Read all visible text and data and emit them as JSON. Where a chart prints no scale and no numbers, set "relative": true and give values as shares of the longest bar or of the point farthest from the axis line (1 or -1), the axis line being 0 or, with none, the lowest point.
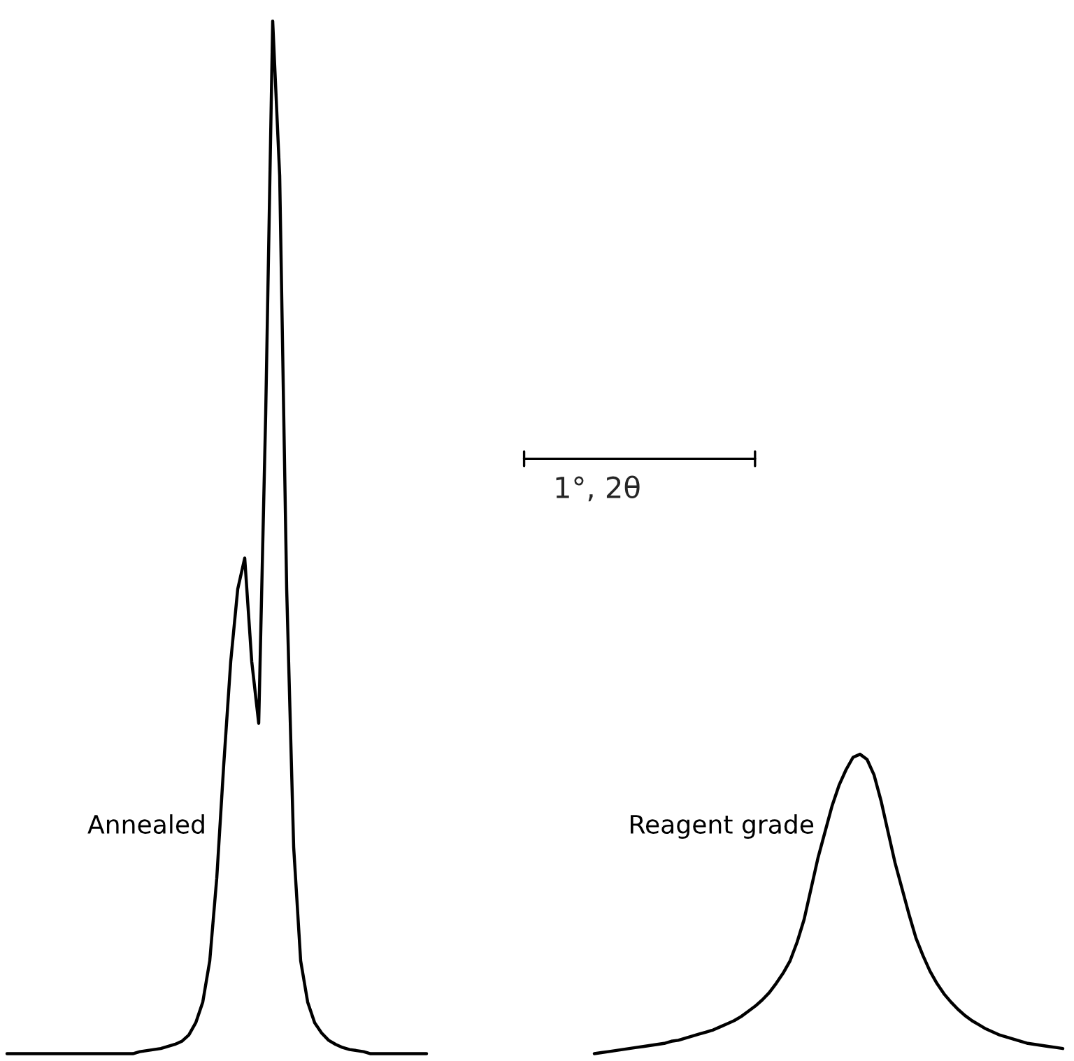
{
  "chart_data": {
    "type": "line",
    "relative": true,
    "line_style": "solid",
    "categories": [
      null,
      null,
      null,
      null,
      null,
      null,
      null,
      null,
      null,
      null,
      null,
      null,
      null,
      null,
      null,
      null,
      null,
      null,
      null,
      null,
      null,
      null,
      null,
      null,
      null,
      null,
      null,
      null,
      null,
      null,
      null,
      null,
      null,
      null,
      null,
      null,
      null,
      null,
      null,
      null,
      null,
      null,
      null,
      null,
      null,
      null,
      null,
      null,
      null,
      null,
      null,
      null,
      null,
      null,
      null,
      null,
      null,
      null,
      null,
      null,
      null,
      null,
      null,
      null,
      null,
      null,
      null,
      null,
      null,
      null,
      null,
      null,
      null,
      null,
      null,
      null,
      null,
      null,
      null,
      null,
      null,
      null,
      null,
      null,
      null,
      null,
      null,
      null,
      null,
      null,
      null,
      null,
      null,
      null,
      null,
      null,
      null,
      null,
      null,
      null,
      null,
      null,
      null,
      null,
      null,
      null,
      null,
      null,
      null,
      null,
      null,
      null,
      null,
      null,
      null,
      null,
      null,
      null,
      null,
      null,
      null,
      null,
      null,
      null,
      null,
      null,
      null,
      null,
      null,
      null,
      null,
      null,
      null,
      null,
      null,
      null,
      null,
      null,
      null,
      null,
      null,
      null,
      null,
      null,
      null,
      null,
      null,
      null,
      null,
      null,
      null,
      null,
      null
    ],
    "series": [
      {
        "name": "Annealed",
        "color": "#000000",
        "values": [
          null,
          0,
          0,
          0,
          0,
          0,
          0,
          0,
          0,
          0,
          0,
          0,
          0,
          0,
          0,
          0,
          0,
          0,
          0,
          0,
          0.002,
          0.003,
          0.004,
          0.005,
          0.007,
          0.009,
          0.012,
          0.018,
          0.03,
          0.05,
          0.09,
          0.17,
          0.28,
          0.38,
          0.45,
          0.48,
          0.38,
          0.32,
          0.62,
          1.0,
          0.85,
          0.45,
          0.2,
          0.09,
          0.05,
          0.03,
          0.02,
          0.013,
          0.009,
          0.006,
          0.004,
          0.003,
          0.002,
          0,
          0,
          0,
          0,
          0,
          0,
          0,
          0,
          0,
          null,
          null,
          null,
          null,
          null,
          null,
          null,
          null,
          null,
          null,
          null,
          null,
          null,
          null,
          null,
          null,
          null,
          null,
          null,
          null,
          null,
          null,
          null,
          null,
          null,
          null,
          null,
          null,
          null,
          null,
          null,
          null,
          null,
          null,
          null,
          null,
          null,
          null,
          null,
          null,
          null,
          null,
          null,
          null,
          null,
          null,
          null,
          null,
          null,
          null,
          null,
          null,
          null,
          null,
          null,
          null,
          null,
          null,
          null,
          null,
          null,
          null,
          null,
          null,
          null,
          null,
          null,
          null,
          null,
          null,
          null,
          null,
          null,
          null,
          null,
          null,
          null,
          null,
          null,
          null,
          null,
          null,
          null,
          null,
          null,
          null,
          null,
          null,
          null,
          null,
          null
        ]
      },
      {
        "name": "Reagent grade",
        "color": "#000000",
        "values": [
          null,
          null,
          null,
          null,
          null,
          null,
          null,
          null,
          null,
          null,
          null,
          null,
          null,
          null,
          null,
          null,
          null,
          null,
          null,
          null,
          null,
          null,
          null,
          null,
          null,
          null,
          null,
          null,
          null,
          null,
          null,
          null,
          null,
          null,
          null,
          null,
          null,
          null,
          null,
          null,
          null,
          null,
          null,
          null,
          null,
          null,
          null,
          null,
          null,
          null,
          null,
          null,
          null,
          null,
          null,
          null,
          null,
          null,
          null,
          null,
          null,
          null,
          null,
          null,
          null,
          null,
          null,
          null,
          null,
          null,
          null,
          null,
          null,
          null,
          null,
          null,
          null,
          null,
          null,
          null,
          null,
          null,
          null,
          null,
          null,
          0,
          0.001,
          0.002,
          0.003,
          0.004,
          0.005,
          0.006,
          0.007,
          0.008,
          0.009,
          0.01,
          0.012,
          0.013,
          0.015,
          0.017,
          0.019,
          0.021,
          0.023,
          0.026,
          0.029,
          0.032,
          0.036,
          0.041,
          0.046,
          0.052,
          0.059,
          0.068,
          0.078,
          0.09,
          0.108,
          0.13,
          0.16,
          0.19,
          0.215,
          0.24,
          0.26,
          0.275,
          0.287,
          0.29,
          0.285,
          0.27,
          0.245,
          0.215,
          0.185,
          0.16,
          0.135,
          0.112,
          0.095,
          0.08,
          0.068,
          0.058,
          0.05,
          0.043,
          0.037,
          0.032,
          0.028,
          0.024,
          0.021,
          0.018,
          0.016,
          0.014,
          0.012,
          0.01,
          0.009,
          0.008,
          0.007,
          0.006,
          0.005
        ]
      }
    ],
    "annotations": [
      "1°, 2θ"
    ]
  }
}
